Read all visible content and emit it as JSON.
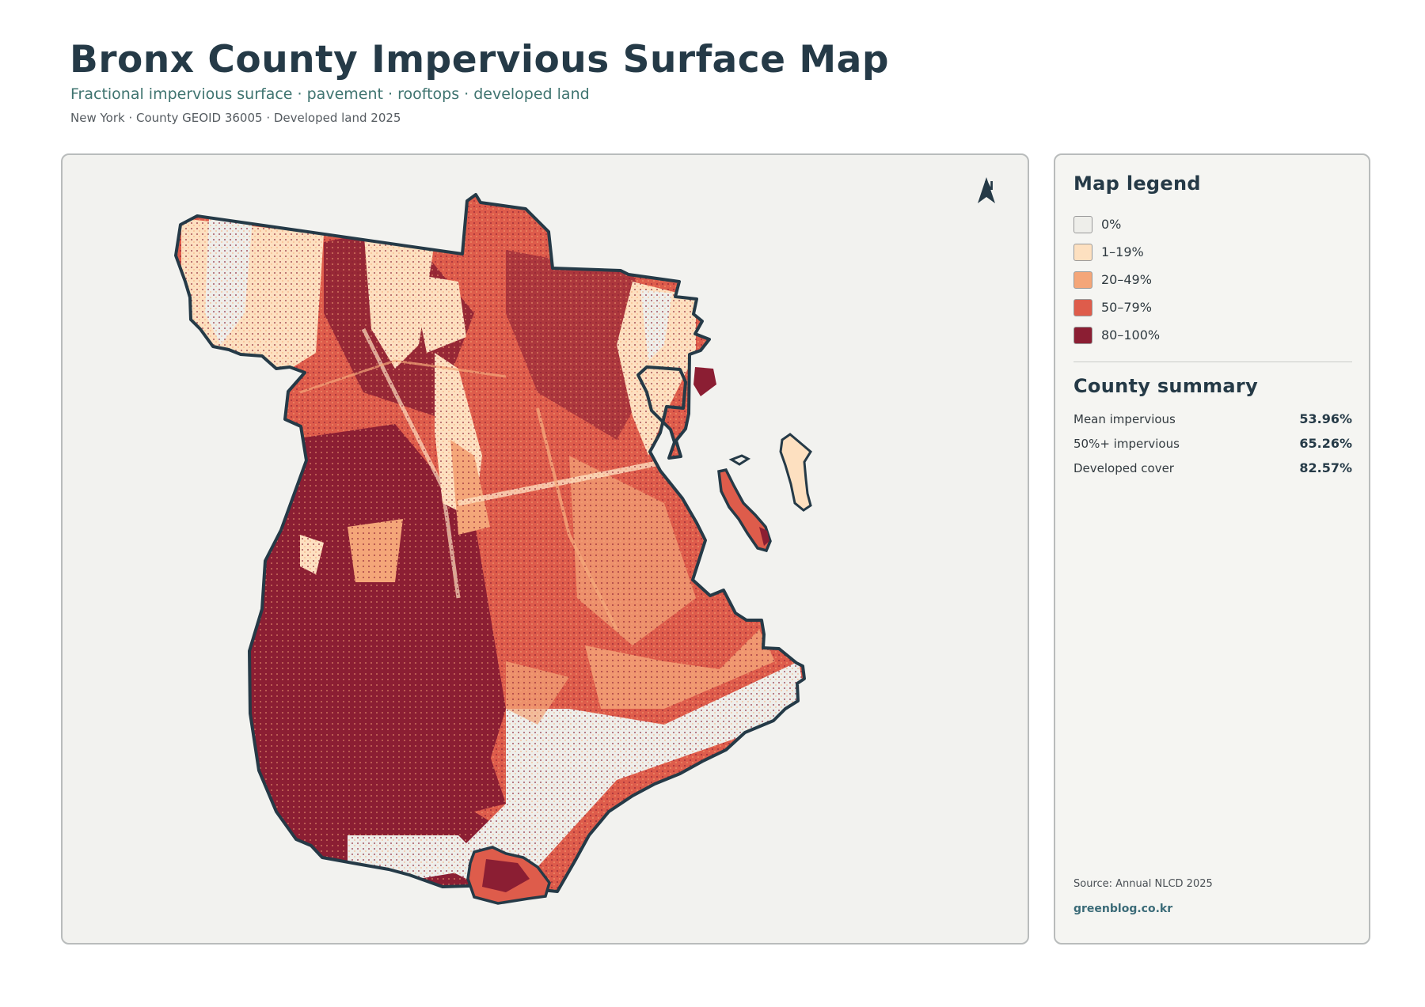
{
  "header": {
    "title": "Bronx County Impervious Surface Map",
    "subtitle": "Fractional impervious surface · pavement · rooftops · developed land",
    "meta": "New York · County GEOID 36005 · Developed land 2025"
  },
  "map": {
    "north_label": "N",
    "icon": "north-arrow-icon",
    "outline_color": "#253a47",
    "background_color": "#f2f2ef"
  },
  "legend": {
    "title": "Map legend",
    "items": [
      {
        "label": "0%",
        "color": "#eeeeea"
      },
      {
        "label": "1–19%",
        "color": "#fde0c0"
      },
      {
        "label": "20–49%",
        "color": "#f4a679"
      },
      {
        "label": "50–79%",
        "color": "#de5c4b"
      },
      {
        "label": "80–100%",
        "color": "#8b1e33"
      }
    ]
  },
  "summary": {
    "title": "County summary",
    "rows": [
      {
        "name": "Mean impervious",
        "value": "53.96%"
      },
      {
        "name": "50%+ impervious",
        "value": "65.26%"
      },
      {
        "name": "Developed cover",
        "value": "82.57%"
      }
    ]
  },
  "footer": {
    "source": "Source: Annual NLCD 2025",
    "brand": "greenblog.co.kr"
  }
}
